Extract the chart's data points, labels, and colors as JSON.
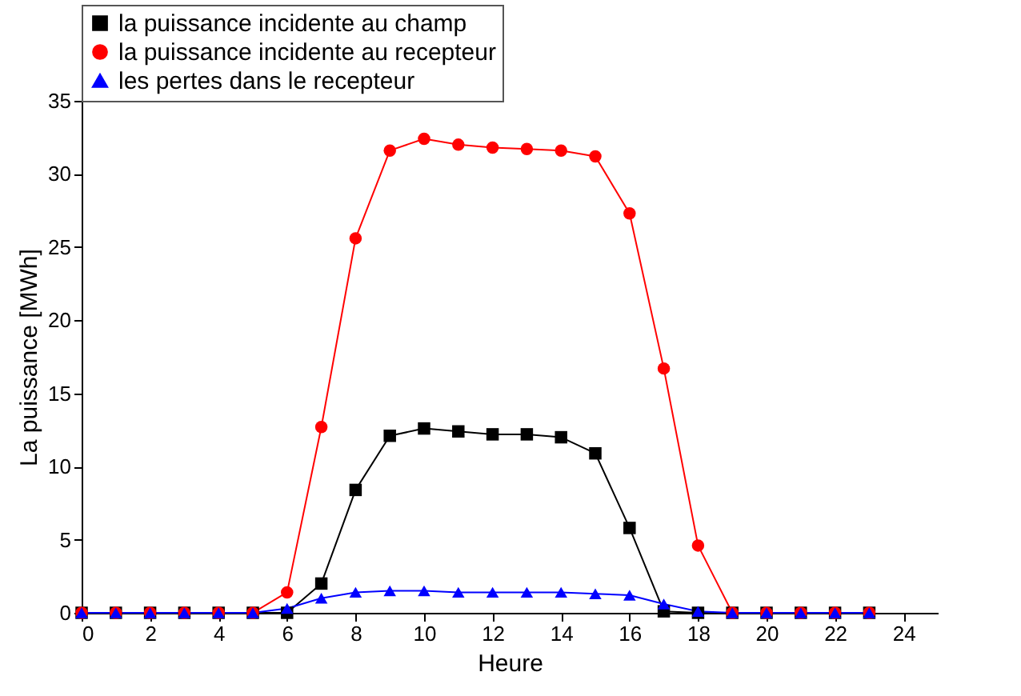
{
  "chart_data": {
    "type": "line",
    "xlabel": "Heure",
    "ylabel": "La puissance [MWh]",
    "x": [
      0,
      1,
      2,
      3,
      4,
      5,
      6,
      7,
      8,
      9,
      10,
      11,
      12,
      13,
      14,
      15,
      16,
      17,
      18,
      19,
      20,
      21,
      22,
      23
    ],
    "series": [
      {
        "name": "la puissance incidente au champ",
        "color": "#000000",
        "marker": "square",
        "values": [
          0,
          0,
          0,
          0,
          0,
          0,
          0,
          2.0,
          8.4,
          12.1,
          12.6,
          12.4,
          12.2,
          12.2,
          12.0,
          10.9,
          5.8,
          0.1,
          0,
          0,
          0,
          0,
          0,
          0
        ]
      },
      {
        "name": "la puissance incidente au recepteur",
        "color": "#ff0000",
        "marker": "circle",
        "values": [
          0,
          0,
          0,
          0,
          0,
          0,
          1.4,
          12.7,
          25.6,
          31.6,
          32.4,
          32.0,
          31.8,
          31.7,
          31.6,
          31.2,
          27.3,
          16.7,
          4.6,
          0,
          0,
          0,
          0,
          0
        ]
      },
      {
        "name": "les pertes dans le recepteur",
        "color": "#0000ff",
        "marker": "triangle",
        "values": [
          0,
          0,
          0,
          0,
          0,
          0,
          0.3,
          1.0,
          1.4,
          1.5,
          1.5,
          1.4,
          1.4,
          1.4,
          1.4,
          1.3,
          1.2,
          0.6,
          0.1,
          0,
          0,
          0,
          0,
          0
        ]
      }
    ],
    "xlim": [
      0,
      25
    ],
    "xticks": [
      0,
      2,
      4,
      6,
      8,
      10,
      12,
      14,
      16,
      18,
      20,
      22,
      24
    ],
    "ylim": [
      0,
      35
    ],
    "yticks": [
      0,
      5,
      10,
      15,
      20,
      25,
      30,
      35
    ],
    "grid": false,
    "legend": "top"
  }
}
